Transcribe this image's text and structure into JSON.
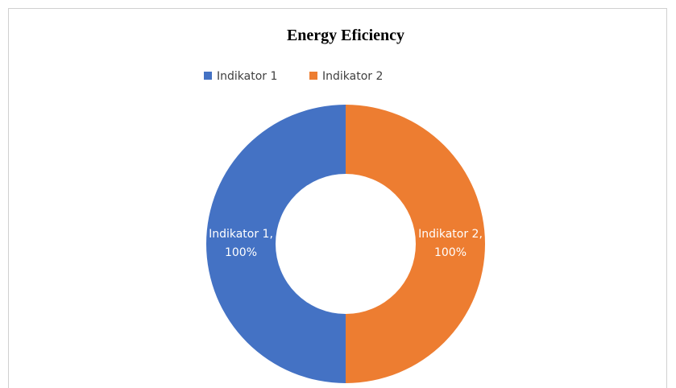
{
  "chart_data": {
    "type": "donut",
    "title": "Energy Eficiency",
    "categories": [
      "Indikator 1",
      "Indikator 2"
    ],
    "values": [
      100,
      100
    ],
    "value_labels": [
      "Indikator 1, 100%",
      "Indikator 2, 100%"
    ],
    "colors": [
      "#4472c4",
      "#ed7d31"
    ],
    "legend": "top"
  }
}
